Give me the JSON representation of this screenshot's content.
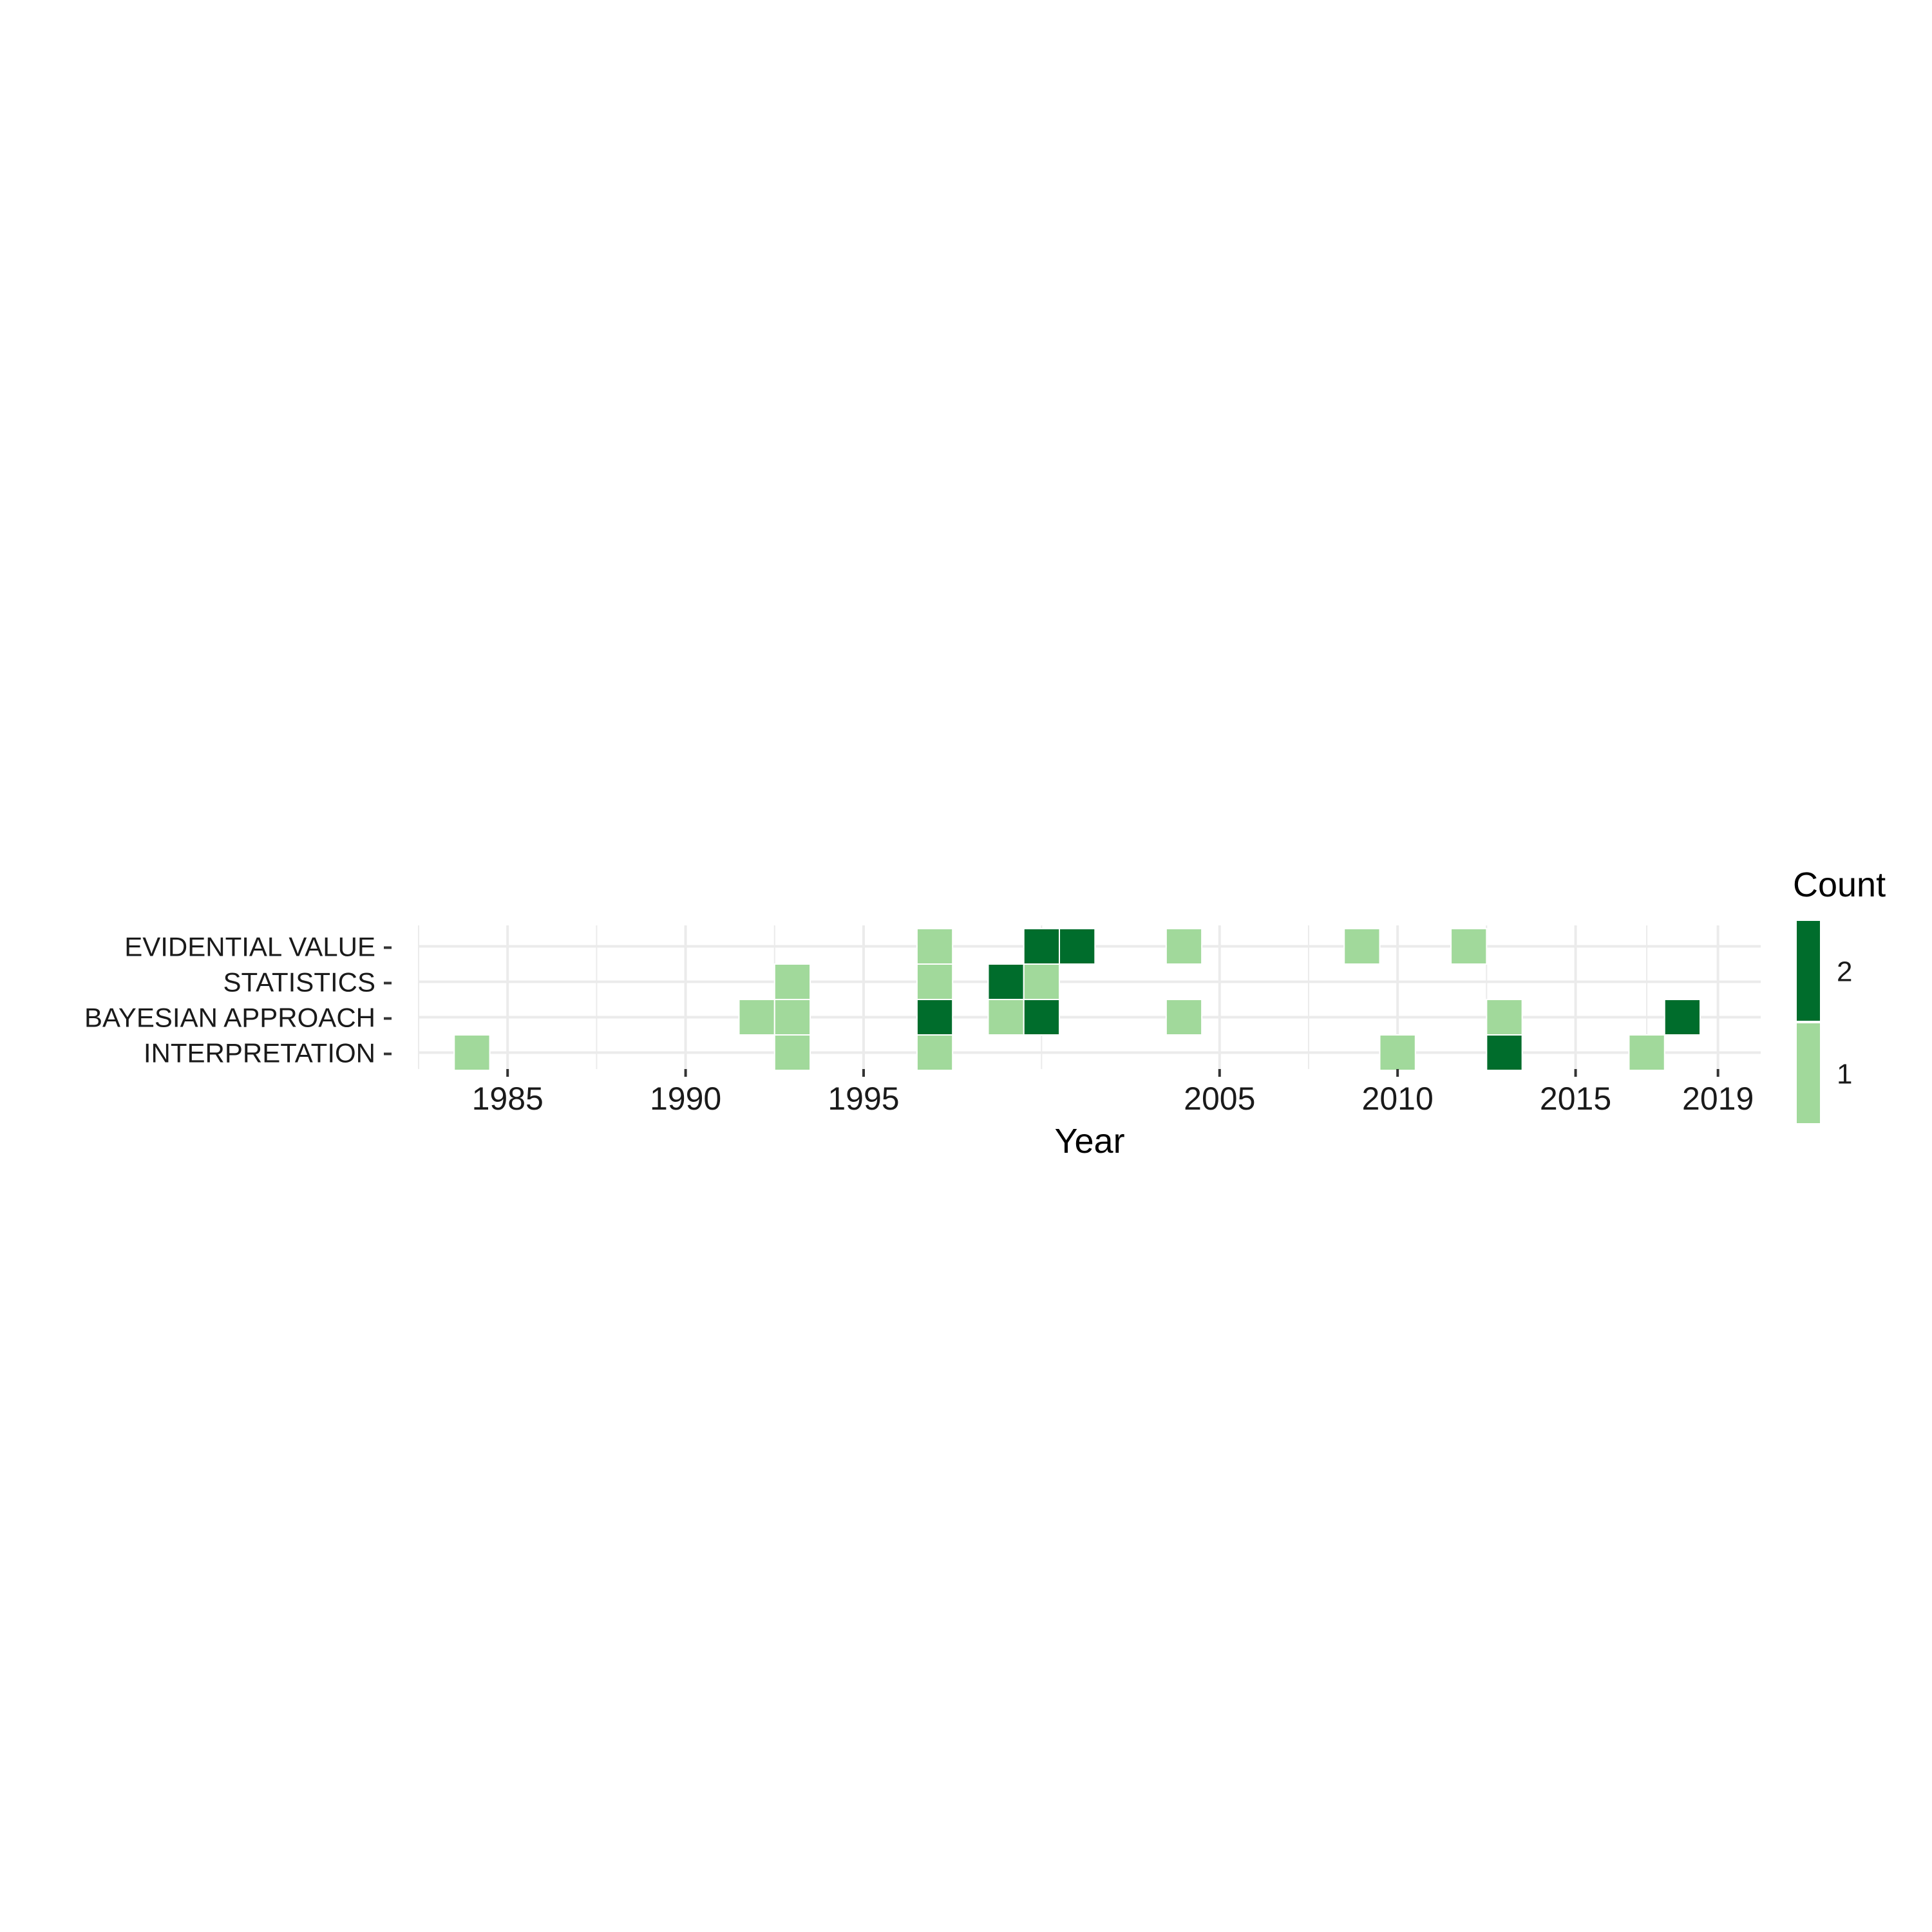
{
  "chart_data": {
    "type": "heatmap",
    "title": "",
    "xlabel": "Year",
    "ylabel": "",
    "x_ticks": [
      1985,
      1990,
      1995,
      2005,
      2010,
      2015,
      2019
    ],
    "x_tick_labels": [
      "1985",
      "1990",
      "1995",
      "2005",
      "2010",
      "2015",
      "2019"
    ],
    "xlim": [
      1982.5,
      2020.2
    ],
    "categories": [
      "EVIDENTIAL VALUE",
      "STATISTICS",
      "BAYESIAN APPROACH",
      "INTERPRETATION"
    ],
    "cells": [
      {
        "category": "EVIDENTIAL VALUE",
        "year": 1997,
        "count": 1
      },
      {
        "category": "EVIDENTIAL VALUE",
        "year": 2000,
        "count": 2
      },
      {
        "category": "EVIDENTIAL VALUE",
        "year": 2001,
        "count": 2
      },
      {
        "category": "EVIDENTIAL VALUE",
        "year": 2004,
        "count": 1
      },
      {
        "category": "EVIDENTIAL VALUE",
        "year": 2009,
        "count": 1
      },
      {
        "category": "EVIDENTIAL VALUE",
        "year": 2012,
        "count": 1
      },
      {
        "category": "STATISTICS",
        "year": 1993,
        "count": 1
      },
      {
        "category": "STATISTICS",
        "year": 1997,
        "count": 1
      },
      {
        "category": "STATISTICS",
        "year": 1999,
        "count": 2
      },
      {
        "category": "STATISTICS",
        "year": 2000,
        "count": 1
      },
      {
        "category": "BAYESIAN APPROACH",
        "year": 1992,
        "count": 1
      },
      {
        "category": "BAYESIAN APPROACH",
        "year": 1993,
        "count": 1
      },
      {
        "category": "BAYESIAN APPROACH",
        "year": 1997,
        "count": 2
      },
      {
        "category": "BAYESIAN APPROACH",
        "year": 1999,
        "count": 1
      },
      {
        "category": "BAYESIAN APPROACH",
        "year": 2000,
        "count": 2
      },
      {
        "category": "BAYESIAN APPROACH",
        "year": 2004,
        "count": 1
      },
      {
        "category": "BAYESIAN APPROACH",
        "year": 2013,
        "count": 1
      },
      {
        "category": "BAYESIAN APPROACH",
        "year": 2018,
        "count": 2
      },
      {
        "category": "INTERPRETATION",
        "year": 1984,
        "count": 1
      },
      {
        "category": "INTERPRETATION",
        "year": 1993,
        "count": 1
      },
      {
        "category": "INTERPRETATION",
        "year": 1997,
        "count": 1
      },
      {
        "category": "INTERPRETATION",
        "year": 2010,
        "count": 1
      },
      {
        "category": "INTERPRETATION",
        "year": 2013,
        "count": 2
      },
      {
        "category": "INTERPRETATION",
        "year": 2017,
        "count": 1
      }
    ],
    "legend": {
      "title": "Count",
      "position": "right",
      "entries": [
        {
          "label": "2",
          "value": 2,
          "color": "#006d2c"
        },
        {
          "label": "1",
          "value": 1,
          "color": "#a1d99b"
        }
      ]
    },
    "colors": {
      "low": "#a1d99b",
      "high": "#006d2c",
      "grid": "#ebebeb",
      "background": "#ffffff"
    },
    "grid": true
  }
}
